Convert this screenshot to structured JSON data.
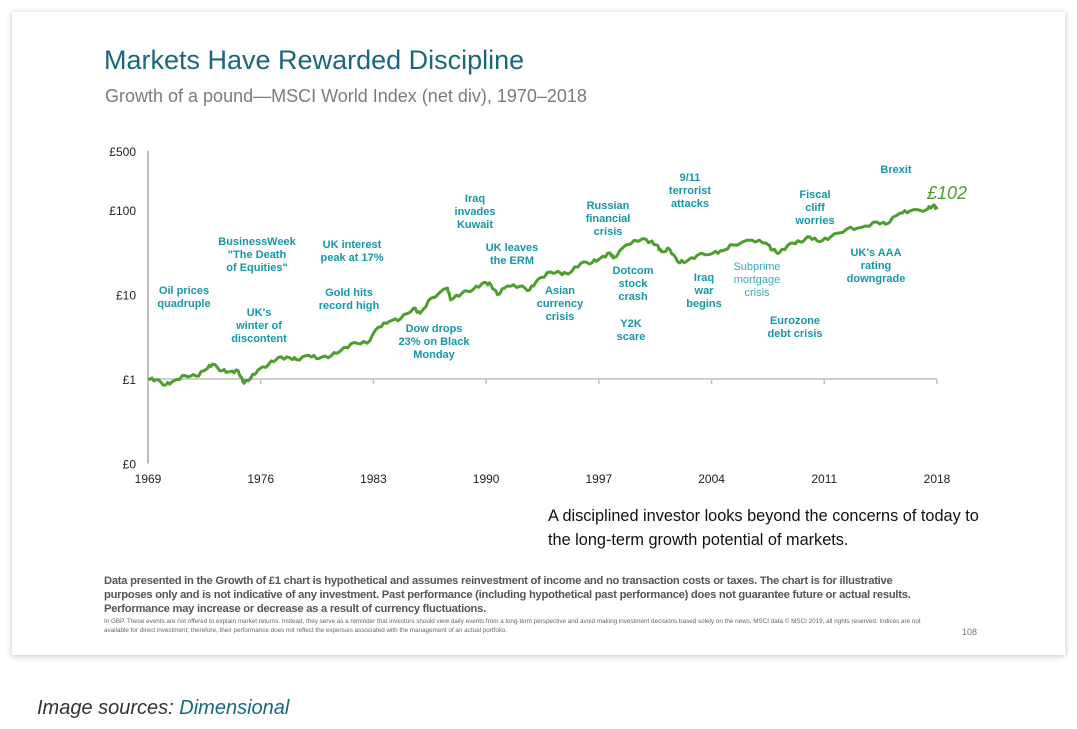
{
  "slide": {
    "title": "Markets Have Rewarded Discipline",
    "subtitle": "Growth of a pound—MSCI World Index (net div), 1970–2018",
    "quote": "A disciplined investor looks beyond the concerns of today to the long-term growth potential of markets.",
    "disclaimer": "Data presented in the Growth of £1 chart is hypothetical and assumes reinvestment of income and no transaction costs or taxes. The chart is for illustrative purposes only and is not indicative of any investment. Past performance (including hypothetical past performance) does not guarantee future or actual results. Performance may increase or decrease as a result of currency fluctuations.",
    "fine_print": "In GBP. These events are not offered to explain market returns. Instead, they serve as a reminder that investors should view daily events from a long-term perspective and avoid making investment decisions based solely on the news. MSCI data © MSCI 2019, all rights reserved. Indices are not available for direct investment; therefore, their performance does not reflect the expenses associated with the management of an actual portfolio.",
    "page_number": "108"
  },
  "image_source": {
    "label": "Image sources: ",
    "name": "Dimensional"
  },
  "colors": {
    "title": "#17697a",
    "line": "#4c9e2e",
    "annotation": "#1597a8",
    "axis": "#a6a6a6"
  },
  "chart_data": {
    "type": "line",
    "title": "Markets Have Rewarded Discipline",
    "subtitle": "Growth of a pound—MSCI World Index (net div), 1970–2018",
    "xlabel": "",
    "ylabel": "",
    "y_scale": "log",
    "ylim": [
      0.1,
      500
    ],
    "xlim": [
      1969,
      2018
    ],
    "y_ticks": [
      {
        "value": 0.1,
        "label": "£0"
      },
      {
        "value": 1,
        "label": "£1"
      },
      {
        "value": 10,
        "label": "£10"
      },
      {
        "value": 100,
        "label": "£100"
      },
      {
        "value": 500,
        "label": "£500"
      }
    ],
    "x_ticks": [
      "1969",
      "1976",
      "1983",
      "1990",
      "1997",
      "2004",
      "2011",
      "2018"
    ],
    "grid": false,
    "end_label": "£102",
    "series": [
      {
        "points": [
          [
            1969.0,
            1.0
          ],
          [
            1969.5,
            0.98
          ],
          [
            1970.1,
            0.85
          ],
          [
            1970.6,
            0.95
          ],
          [
            1971.3,
            1.1
          ],
          [
            1972.0,
            1.08
          ],
          [
            1972.6,
            1.3
          ],
          [
            1973.0,
            1.5
          ],
          [
            1973.6,
            1.25
          ],
          [
            1974.1,
            1.22
          ],
          [
            1974.6,
            1.25
          ],
          [
            1974.9,
            0.92
          ],
          [
            1975.2,
            0.95
          ],
          [
            1975.8,
            1.25
          ],
          [
            1976.5,
            1.5
          ],
          [
            1977.1,
            1.8
          ],
          [
            1977.8,
            1.78
          ],
          [
            1978.2,
            1.7
          ],
          [
            1979.0,
            1.9
          ],
          [
            1979.6,
            1.75
          ],
          [
            1980.4,
            1.9
          ],
          [
            1981.0,
            2.2
          ],
          [
            1981.8,
            2.7
          ],
          [
            1982.6,
            2.65
          ],
          [
            1983.3,
            4.1
          ],
          [
            1984.0,
            4.8
          ],
          [
            1984.7,
            5.2
          ],
          [
            1985.5,
            6.9
          ],
          [
            1985.9,
            6.0
          ],
          [
            1986.6,
            9.1
          ],
          [
            1987.6,
            11.9
          ],
          [
            1987.8,
            8.6
          ],
          [
            1988.5,
            10.4
          ],
          [
            1989.2,
            11.5
          ],
          [
            1989.9,
            14.0
          ],
          [
            1990.3,
            13.0
          ],
          [
            1990.7,
            10.0
          ],
          [
            1991.3,
            12.6
          ],
          [
            1992.1,
            12.5
          ],
          [
            1992.7,
            11.3
          ],
          [
            1993.2,
            15.0
          ],
          [
            1994.0,
            18.5
          ],
          [
            1994.6,
            18.0
          ],
          [
            1995.1,
            17.5
          ],
          [
            1995.9,
            23.5
          ],
          [
            1996.6,
            24.0
          ],
          [
            1997.1,
            27.0
          ],
          [
            1997.7,
            31.0
          ],
          [
            1997.9,
            27.0
          ],
          [
            1998.7,
            38.6
          ],
          [
            1999.7,
            45.5
          ],
          [
            2000.2,
            42.0
          ],
          [
            2000.6,
            38.6
          ],
          [
            2000.9,
            32.0
          ],
          [
            2001.4,
            34.5
          ],
          [
            2001.9,
            24.3
          ],
          [
            2002.4,
            24.3
          ],
          [
            2003.1,
            29.0
          ],
          [
            2004.1,
            31.0
          ],
          [
            2004.7,
            33.0
          ],
          [
            2005.3,
            38.6
          ],
          [
            2006.5,
            44.0
          ],
          [
            2007.4,
            40.5
          ],
          [
            2007.8,
            33.6
          ],
          [
            2008.2,
            31.0
          ],
          [
            2008.9,
            40.5
          ],
          [
            2009.5,
            42.0
          ],
          [
            2010.1,
            48.0
          ],
          [
            2010.7,
            42.0
          ],
          [
            2011.4,
            48.0
          ],
          [
            2012.4,
            59.5
          ],
          [
            2013.3,
            62.0
          ],
          [
            2014.3,
            72.0
          ],
          [
            2014.8,
            68.0
          ],
          [
            2015.7,
            92.0
          ],
          [
            2016.3,
            97.0
          ],
          [
            2017.4,
            102.0
          ],
          [
            2017.8,
            115.0
          ],
          [
            2018.0,
            102.0
          ]
        ]
      }
    ],
    "annotations": [
      {
        "text": "Oil prices\nquadruple",
        "year": 1971.2
      },
      {
        "text": "BusinessWeek\n\"The Death\nof Equities\"",
        "year": 1975.8
      },
      {
        "text": "UK's\nwinter of\ndiscontent",
        "year": 1975.9
      },
      {
        "text": "UK interest\npeak at 17%",
        "year": 1981.7
      },
      {
        "text": "Gold hits\nrecord high",
        "year": 1981.5
      },
      {
        "text": "Dow drops\n23% on Black\nMonday",
        "year": 1987.8
      },
      {
        "text": "Iraq\ninvades\nKuwait",
        "year": 1990.3
      },
      {
        "text": "UK leaves\nthe ERM",
        "year": 1992.6
      },
      {
        "text": "Asian\ncurrency\ncrisis",
        "year": 1995.6
      },
      {
        "text": "Russian\nfinancial\ncrisis",
        "year": 1998.6
      },
      {
        "text": "Dotcom\nstock\ncrash",
        "year": 2000.1
      },
      {
        "text": "Y2K\nscare",
        "year": 2000.0
      },
      {
        "text": "9/11\nterrorist\nattacks",
        "year": 2003.7
      },
      {
        "text": "Iraq\nwar\nbegins",
        "year": 2004.5
      },
      {
        "text": "Subprime\nmortgage\ncrisis",
        "year": 2007.8
      },
      {
        "text": "Eurozone\ndebt crisis",
        "year": 2010.2
      },
      {
        "text": "Fiscal\ncliff\nworries",
        "year": 2011.4
      },
      {
        "text": "UK's AAA\nrating\ndowngrade",
        "year": 2015.2
      },
      {
        "text": "Brexit",
        "year": 2016.5
      }
    ]
  }
}
